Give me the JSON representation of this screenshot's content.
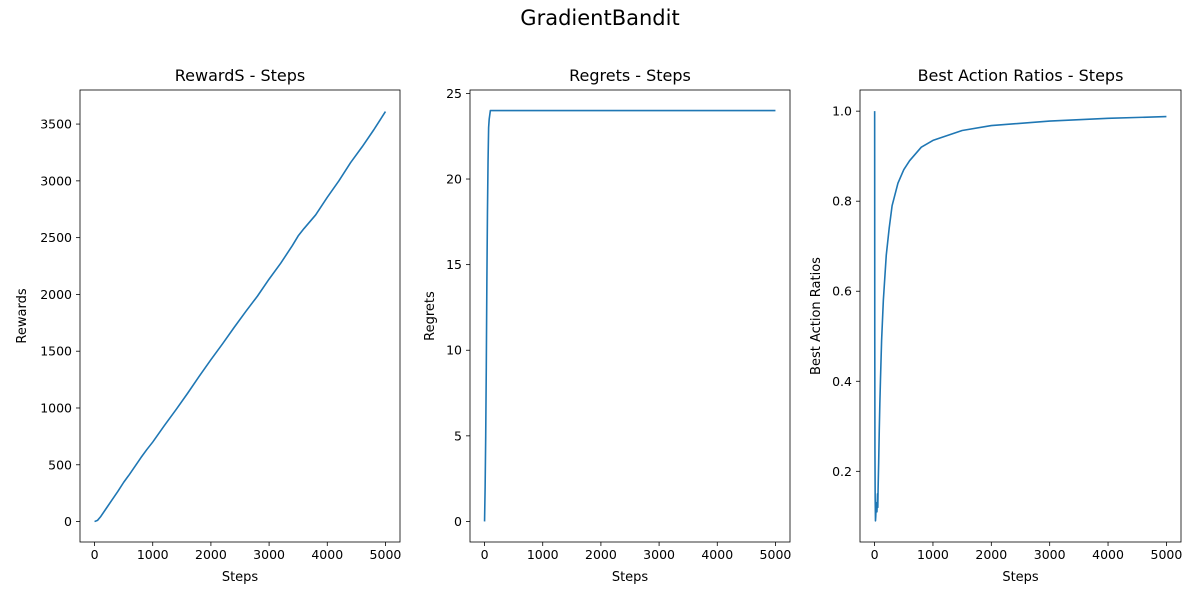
{
  "suptitle": "GradientBandit",
  "line_color": "#1f77b4",
  "chart_data": [
    {
      "type": "line",
      "title": "RewardS - Steps",
      "xlabel": "Steps",
      "ylabel": "Rewards",
      "xlim": [
        -250,
        5250
      ],
      "ylim": [
        -180,
        3800
      ],
      "xticks": [
        0,
        1000,
        2000,
        3000,
        4000,
        5000
      ],
      "yticks": [
        0,
        500,
        1000,
        1500,
        2000,
        2500,
        3000,
        3500
      ],
      "series": [
        {
          "x": [
            0,
            50,
            100,
            200,
            300,
            400,
            500,
            600,
            700,
            800,
            900,
            1000,
            1200,
            1400,
            1600,
            1800,
            2000,
            2200,
            2400,
            2600,
            2800,
            3000,
            3200,
            3400,
            3500,
            3600,
            3800,
            4000,
            4200,
            4400,
            4600,
            4800,
            5000
          ],
          "y": [
            0,
            10,
            40,
            115,
            190,
            265,
            345,
            415,
            490,
            565,
            635,
            700,
            845,
            985,
            1130,
            1280,
            1425,
            1565,
            1710,
            1850,
            1985,
            2135,
            2275,
            2430,
            2515,
            2580,
            2700,
            2855,
            3000,
            3160,
            3300,
            3450,
            3610
          ]
        }
      ]
    },
    {
      "type": "line",
      "title": "Regrets - Steps",
      "xlabel": "Steps",
      "ylabel": "Regrets",
      "xlim": [
        -250,
        5250
      ],
      "ylim": [
        -1.2,
        25.2
      ],
      "xticks": [
        0,
        1000,
        2000,
        3000,
        4000,
        5000
      ],
      "yticks": [
        0,
        5,
        10,
        15,
        20,
        25
      ],
      "series": [
        {
          "x": [
            0,
            10,
            20,
            30,
            40,
            50,
            60,
            70,
            80,
            100,
            500,
            1000,
            2000,
            3000,
            4000,
            5000
          ],
          "y": [
            0,
            2,
            5,
            9,
            14,
            18,
            21,
            23,
            23.5,
            24,
            24,
            24,
            24,
            24,
            24,
            24
          ]
        }
      ]
    },
    {
      "type": "line",
      "title": "Best Action Ratios - Steps",
      "xlabel": "Steps",
      "ylabel": "Best Action Ratios",
      "xlim": [
        -250,
        5250
      ],
      "ylim": [
        0.043,
        1.047
      ],
      "xticks": [
        0,
        1000,
        2000,
        3000,
        4000,
        5000
      ],
      "yticks": [
        0.2,
        0.4,
        0.6,
        0.8,
        1.0
      ],
      "series": [
        {
          "x": [
            1,
            3,
            6,
            10,
            15,
            20,
            25,
            30,
            35,
            40,
            45,
            50,
            55,
            60,
            70,
            80,
            90,
            100,
            120,
            150,
            200,
            250,
            300,
            400,
            500,
            600,
            800,
            1000,
            1500,
            2000,
            3000,
            4000,
            5000
          ],
          "y": [
            1.0,
            0.5,
            0.25,
            0.14,
            0.09,
            0.1,
            0.12,
            0.13,
            0.12,
            0.11,
            0.13,
            0.15,
            0.12,
            0.16,
            0.22,
            0.29,
            0.35,
            0.4,
            0.49,
            0.58,
            0.68,
            0.74,
            0.79,
            0.84,
            0.87,
            0.89,
            0.92,
            0.935,
            0.957,
            0.968,
            0.978,
            0.984,
            0.988
          ]
        }
      ]
    }
  ]
}
